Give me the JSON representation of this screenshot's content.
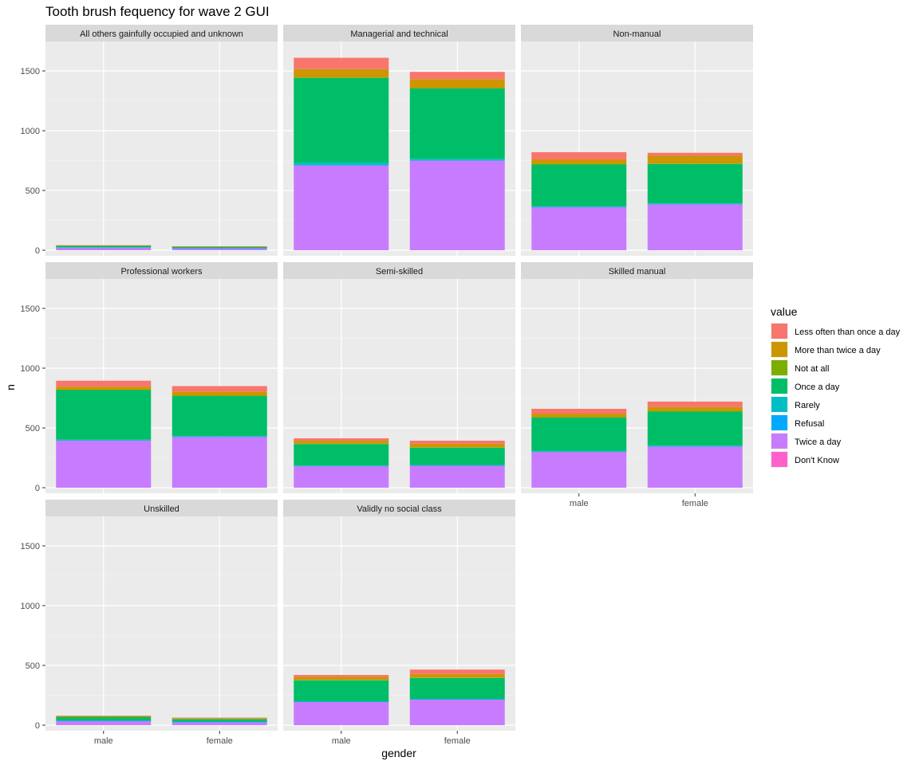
{
  "chart_data": {
    "type": "bar",
    "stacked": true,
    "title": "Tooth brush fequency for wave 2 GUI",
    "xlabel": "gender",
    "ylabel": "n",
    "ylim": [
      0,
      1700
    ],
    "yticks": [
      0,
      500,
      1000,
      1500
    ],
    "categories": [
      "male",
      "female"
    ],
    "legend": {
      "title": "value",
      "placement": "right",
      "entries": [
        {
          "name": "Less often than once a day",
          "color": "#F8766D"
        },
        {
          "name": "More than twice a day",
          "color": "#CD9600"
        },
        {
          "name": "Not at all",
          "color": "#7CAE00"
        },
        {
          "name": "Once a day",
          "color": "#00BE67"
        },
        {
          "name": "Rarely",
          "color": "#00BFC4"
        },
        {
          "name": "Refusal",
          "color": "#00A9FF"
        },
        {
          "name": "Twice a day",
          "color": "#C77CFF"
        },
        {
          "name": "Don't Know",
          "color": "#FF61CC"
        }
      ]
    },
    "stack_order_bottom_to_top": [
      "Twice a day",
      "Refusal",
      "Rarely",
      "Once a day",
      "Not at all",
      "More than twice a day",
      "Less often than once a day"
    ],
    "facets": [
      {
        "label": "All others gainfully occupied and unknown",
        "values": {
          "male": {
            "Twice a day": 20,
            "Refusal": 2,
            "Rarely": 3,
            "Once a day": 12,
            "Not at all": 1,
            "More than twice a day": 2,
            "Less often than once a day": 2
          },
          "female": {
            "Twice a day": 15,
            "Refusal": 2,
            "Rarely": 3,
            "Once a day": 8,
            "Not at all": 1,
            "More than twice a day": 2,
            "Less often than once a day": 2
          }
        }
      },
      {
        "label": "Managerial and technical",
        "values": {
          "male": {
            "Twice a day": 710,
            "Refusal": 3,
            "Rarely": 20,
            "Once a day": 710,
            "Not at all": 2,
            "More than twice a day": 70,
            "Less often than once a day": 95
          },
          "female": {
            "Twice a day": 750,
            "Refusal": 3,
            "Rarely": 12,
            "Once a day": 590,
            "Not at all": 2,
            "More than twice a day": 75,
            "Less often than once a day": 60
          }
        }
      },
      {
        "label": "Non-manual",
        "values": {
          "male": {
            "Twice a day": 360,
            "Refusal": 2,
            "Rarely": 5,
            "Once a day": 350,
            "Not at all": 3,
            "More than twice a day": 40,
            "Less often than once a day": 60
          },
          "female": {
            "Twice a day": 385,
            "Refusal": 2,
            "Rarely": 5,
            "Once a day": 330,
            "Not at all": 3,
            "More than twice a day": 65,
            "Less often than once a day": 25
          }
        }
      },
      {
        "label": "Professional workers",
        "values": {
          "male": {
            "Twice a day": 395,
            "Refusal": 2,
            "Rarely": 5,
            "Once a day": 415,
            "Not at all": 3,
            "More than twice a day": 25,
            "Less often than once a day": 50
          },
          "female": {
            "Twice a day": 425,
            "Refusal": 2,
            "Rarely": 5,
            "Once a day": 335,
            "Not at all": 3,
            "More than twice a day": 35,
            "Less often than once a day": 45
          }
        }
      },
      {
        "label": "Semi-skilled",
        "values": {
          "male": {
            "Twice a day": 180,
            "Refusal": 2,
            "Rarely": 3,
            "Once a day": 180,
            "Not at all": 3,
            "More than twice a day": 25,
            "Less often than once a day": 20
          },
          "female": {
            "Twice a day": 185,
            "Refusal": 2,
            "Rarely": 3,
            "Once a day": 145,
            "Not at all": 3,
            "More than twice a day": 30,
            "Less often than once a day": 25
          }
        }
      },
      {
        "label": "Skilled manual",
        "values": {
          "male": {
            "Twice a day": 300,
            "Refusal": 2,
            "Rarely": 5,
            "Once a day": 280,
            "Not at all": 3,
            "More than twice a day": 30,
            "Less often than once a day": 40
          },
          "female": {
            "Twice a day": 345,
            "Refusal": 2,
            "Rarely": 5,
            "Once a day": 285,
            "Not at all": 3,
            "More than twice a day": 35,
            "Less often than once a day": 45
          }
        }
      },
      {
        "label": "Unskilled",
        "values": {
          "male": {
            "Twice a day": 35,
            "Refusal": 2,
            "Rarely": 3,
            "Once a day": 28,
            "Not at all": 2,
            "More than twice a day": 5,
            "Less often than once a day": 5
          },
          "female": {
            "Twice a day": 25,
            "Refusal": 2,
            "Rarely": 3,
            "Once a day": 20,
            "Not at all": 2,
            "More than twice a day": 6,
            "Less often than once a day": 5
          }
        }
      },
      {
        "label": "Validly no social class",
        "values": {
          "male": {
            "Twice a day": 195,
            "Refusal": 2,
            "Rarely": 3,
            "Once a day": 175,
            "Not at all": 3,
            "More than twice a day": 25,
            "Less often than once a day": 17
          },
          "female": {
            "Twice a day": 215,
            "Refusal": 2,
            "Rarely": 3,
            "Once a day": 175,
            "Not at all": 3,
            "More than twice a day": 30,
            "Less often than once a day": 37
          }
        }
      }
    ]
  }
}
